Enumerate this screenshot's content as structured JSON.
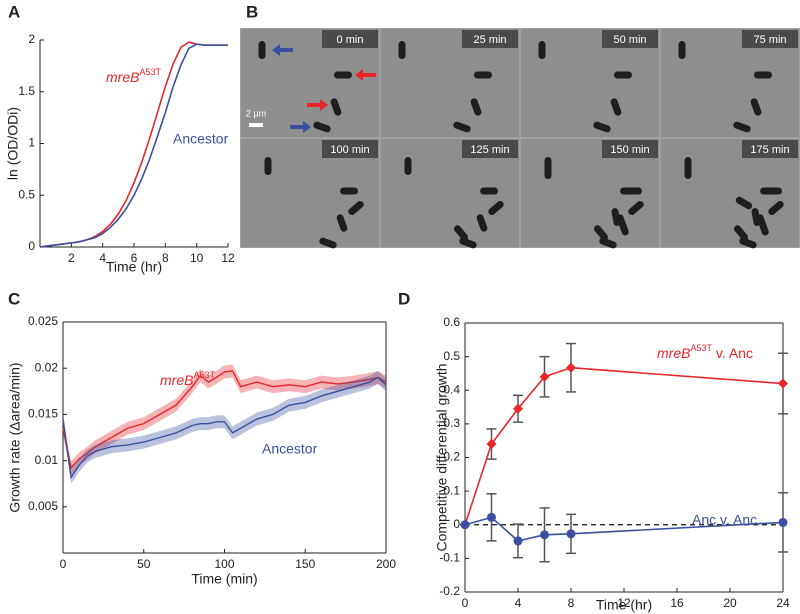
{
  "panel_labels": [
    "A",
    "B",
    "C",
    "D"
  ],
  "micrograph": {
    "times": [
      "0 min",
      "25 min",
      "50 min",
      "75 min",
      "100 min",
      "125 min",
      "150 min",
      "175 min"
    ],
    "scale_bar": "2 µm"
  },
  "chart_data": [
    {
      "type": "line",
      "xlabel": "Time (hr)",
      "ylabel": "ln (OD/ODi)",
      "box": false,
      "x": [
        0,
        0.5,
        1,
        1.5,
        2,
        2.5,
        3,
        3.5,
        4,
        4.5,
        5,
        5.5,
        6,
        6.5,
        7,
        7.5,
        8,
        8.5,
        9,
        9.5,
        10,
        10.5,
        11,
        11.5,
        12
      ],
      "xlim": [
        0,
        12
      ],
      "xticks": [
        2,
        4,
        6,
        8,
        10,
        12
      ],
      "ylim": [
        0,
        2
      ],
      "yticks": [
        0,
        0.5,
        1,
        1.5,
        2
      ],
      "series": [
        {
          "name_parts": [
            "mreB",
            "A53T"
          ],
          "color": "#e8262a",
          "values": [
            0,
            0.01,
            0.02,
            0.03,
            0.04,
            0.05,
            0.07,
            0.1,
            0.15,
            0.22,
            0.32,
            0.45,
            0.62,
            0.82,
            1.05,
            1.3,
            1.55,
            1.77,
            1.93,
            1.98,
            1.96,
            1.95,
            1.95,
            1.95,
            1.95
          ]
        },
        {
          "name": "Ancestor",
          "color": "#3a4fa0",
          "values": [
            0,
            0.01,
            0.02,
            0.03,
            0.04,
            0.05,
            0.07,
            0.09,
            0.13,
            0.19,
            0.27,
            0.37,
            0.5,
            0.66,
            0.85,
            1.07,
            1.3,
            1.55,
            1.76,
            1.92,
            1.96,
            1.95,
            1.95,
            1.95,
            1.95
          ]
        }
      ]
    },
    {
      "type": "band-line",
      "xlabel": "Time (min)",
      "ylabel": "Growth rate (Δarea/min)",
      "box": true,
      "x": [
        0,
        5,
        10,
        15,
        20,
        30,
        40,
        50,
        60,
        70,
        80,
        85,
        90,
        95,
        100,
        105,
        110,
        120,
        130,
        140,
        150,
        160,
        170,
        180,
        190,
        195,
        200
      ],
      "xlim": [
        0,
        200
      ],
      "xticks": [
        0,
        50,
        100,
        150,
        200
      ],
      "ylim": [
        0,
        0.025
      ],
      "yticks": [
        0.005,
        0.01,
        0.015,
        0.02,
        0.025
      ],
      "series": [
        {
          "name_parts": [
            "mreB",
            "A53T"
          ],
          "color": "#e8262a",
          "error": 0.0007,
          "values": [
            0.0135,
            0.0092,
            0.0102,
            0.0108,
            0.0115,
            0.0125,
            0.0135,
            0.014,
            0.015,
            0.016,
            0.018,
            0.0192,
            0.0185,
            0.019,
            0.0196,
            0.0197,
            0.018,
            0.0185,
            0.018,
            0.0182,
            0.018,
            0.0185,
            0.0183,
            0.0185,
            0.0188,
            0.019,
            0.0185
          ]
        },
        {
          "name": "Ancestor",
          "color": "#3a4fa0",
          "error": 0.0007,
          "values": [
            0.0145,
            0.0082,
            0.0095,
            0.0105,
            0.011,
            0.0115,
            0.0117,
            0.012,
            0.0125,
            0.013,
            0.0138,
            0.014,
            0.014,
            0.0142,
            0.0142,
            0.013,
            0.0135,
            0.0145,
            0.015,
            0.016,
            0.0163,
            0.017,
            0.0175,
            0.018,
            0.0185,
            0.019,
            0.0182
          ]
        }
      ]
    },
    {
      "type": "errorbar",
      "xlabel": "Time (hr)",
      "ylabel": "Competitive differential growth",
      "box": true,
      "hline": 0,
      "x": [
        0,
        2,
        4,
        6,
        8,
        24
      ],
      "xlim": [
        0,
        24
      ],
      "xticks": [
        0,
        4,
        8,
        12,
        16,
        20,
        24
      ],
      "ylim": [
        -0.2,
        0.6
      ],
      "yticks": [
        -0.2,
        -0.1,
        0,
        0.1,
        0.2,
        0.3,
        0.4,
        0.5,
        0.6
      ],
      "series": [
        {
          "name_parts": [
            "mreB",
            "A53T",
            " v. Anc"
          ],
          "color": "#e8262a",
          "marker": "diamond",
          "values": [
            0,
            0.24,
            0.345,
            0.44,
            0.467,
            0.42
          ],
          "errors": [
            0,
            0.045,
            0.04,
            0.06,
            0.072,
            0.09
          ]
        },
        {
          "name": "Anc v. Anc",
          "color": "#3a4fa0",
          "marker": "circle",
          "values": [
            0,
            0.022,
            -0.048,
            -0.03,
            -0.027,
            0.007
          ],
          "errors": [
            0,
            0.07,
            0.05,
            0.08,
            0.058,
            0.088
          ]
        }
      ]
    }
  ]
}
